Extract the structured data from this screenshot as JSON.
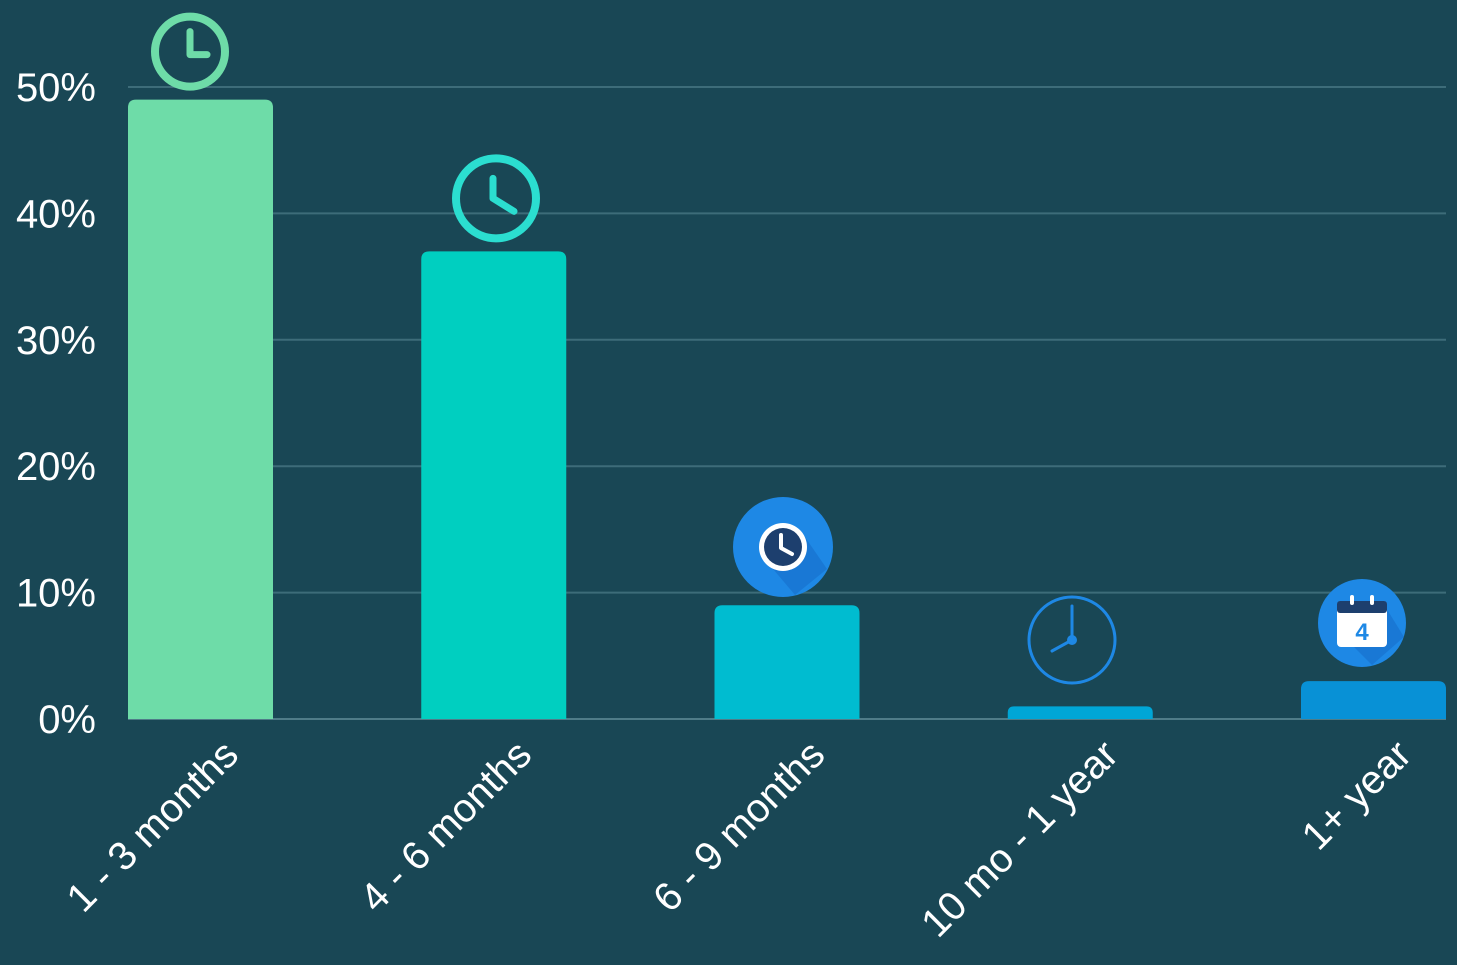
{
  "chart_data": {
    "type": "bar",
    "categories": [
      "1 - 3 months",
      "4 - 6 months",
      "6 - 9 months",
      "10 mo - 1 year",
      "1+ year"
    ],
    "values": [
      49,
      37,
      9,
      1,
      3
    ],
    "ylim": [
      0,
      50
    ],
    "yticks": [
      0,
      10,
      20,
      30,
      40,
      50
    ],
    "ytick_labels": [
      "0%",
      "10%",
      "20%",
      "30%",
      "40%",
      "50%"
    ],
    "title": "",
    "xlabel": "",
    "ylabel": "",
    "grid": true,
    "bar_colors": [
      "#6edca8",
      "#00cfc0",
      "#00bcd0",
      "#00a6d6",
      "#0891d6"
    ],
    "icons": [
      "clock-outline-icon",
      "clock-outline-icon",
      "clock-badge-icon",
      "wall-clock-icon",
      "calendar-badge-icon"
    ],
    "icon_colors": [
      "#6edca8",
      "#2bded0",
      "#1e88e5",
      "#1e88e5",
      "#1e88e5"
    ],
    "calendar_day": "4"
  }
}
